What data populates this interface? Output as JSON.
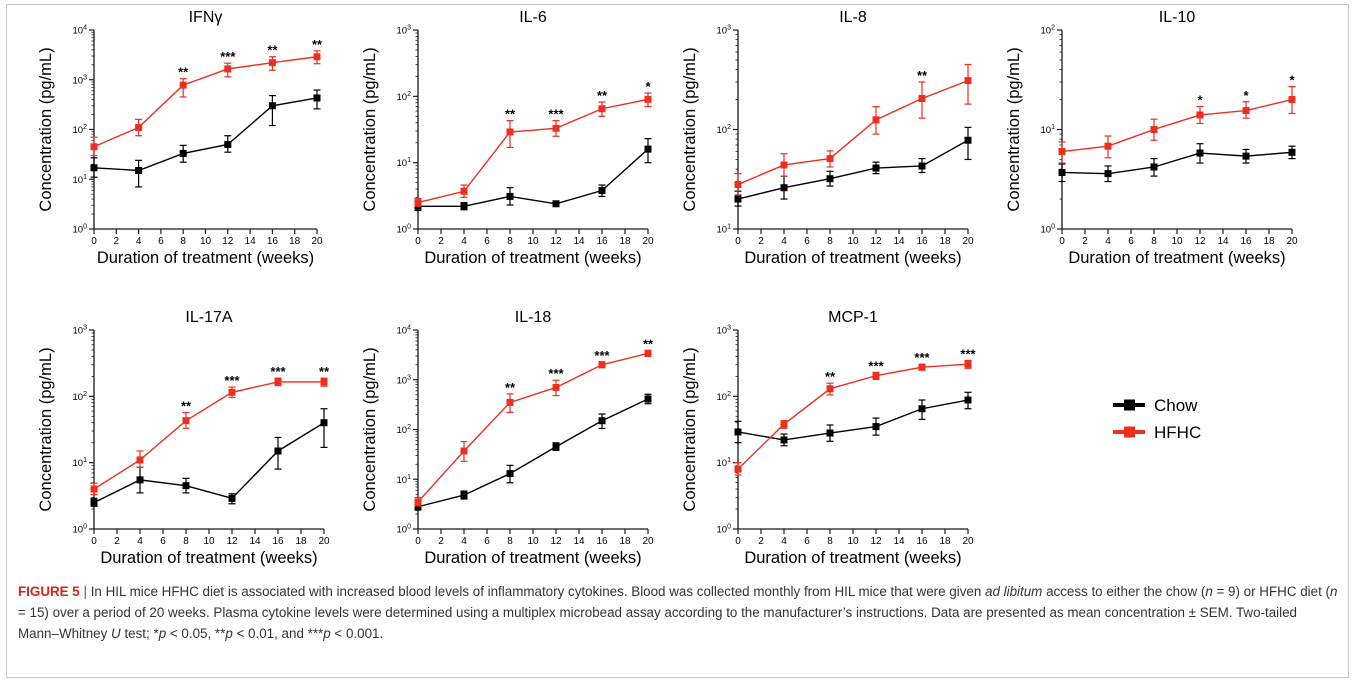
{
  "chart_data": [
    {
      "type": "line",
      "title": "IFNγ",
      "xlabel": "Duration of treatment (weeks)",
      "ylabel": "Concentration (pg/mL)",
      "yscale": "log",
      "ylim": [
        1,
        10000
      ],
      "ydecades": [
        0,
        1,
        2,
        3,
        4
      ],
      "xlim": [
        0,
        20
      ],
      "xticks": [
        0,
        2,
        4,
        6,
        8,
        10,
        12,
        14,
        16,
        18,
        20
      ],
      "x": [
        0,
        4,
        8,
        12,
        16,
        20
      ],
      "series": [
        {
          "name": "Chow",
          "color": "#000000",
          "marker": "square",
          "values": [
            17,
            15,
            33,
            50,
            300,
            430
          ],
          "err_low": [
            11,
            7,
            22,
            35,
            120,
            260
          ],
          "err_high": [
            27,
            24,
            48,
            75,
            480,
            620
          ]
        },
        {
          "name": "HFHC",
          "color": "#ec2f1f",
          "marker": "square",
          "values": [
            45,
            110,
            780,
            1650,
            2200,
            2900
          ],
          "err_low": [
            30,
            75,
            450,
            1150,
            1550,
            2100
          ],
          "err_high": [
            70,
            160,
            1050,
            2150,
            2900,
            3800
          ]
        }
      ],
      "annotations": [
        {
          "x": 8,
          "text": "**"
        },
        {
          "x": 12,
          "text": "***"
        },
        {
          "x": 16,
          "text": "**"
        },
        {
          "x": 20,
          "text": "**"
        }
      ]
    },
    {
      "type": "line",
      "title": "IL-6",
      "xlabel": "Duration of treatment (weeks)",
      "ylabel": "Concentration (pg/mL)",
      "yscale": "log",
      "ylim": [
        1,
        1000
      ],
      "ydecades": [
        0,
        1,
        2,
        3
      ],
      "xlim": [
        0,
        20
      ],
      "xticks": [
        0,
        2,
        4,
        6,
        8,
        10,
        12,
        14,
        16,
        18,
        20
      ],
      "x": [
        0,
        4,
        8,
        12,
        16,
        20
      ],
      "series": [
        {
          "name": "Chow",
          "color": "#000000",
          "marker": "square",
          "values": [
            2.2,
            2.2,
            3.1,
            2.4,
            3.8,
            16
          ],
          "err_low": [
            1.9,
            1.95,
            2.3,
            2.2,
            3.1,
            10
          ],
          "err_high": [
            2.5,
            2.5,
            4.2,
            2.6,
            4.6,
            23
          ]
        },
        {
          "name": "HFHC",
          "color": "#ec2f1f",
          "marker": "square",
          "values": [
            2.5,
            3.7,
            29,
            33,
            65,
            90
          ],
          "err_low": [
            2.2,
            3.0,
            17,
            25,
            50,
            70
          ],
          "err_high": [
            2.9,
            4.6,
            43,
            43,
            82,
            112
          ]
        }
      ],
      "annotations": [
        {
          "x": 8,
          "text": "**"
        },
        {
          "x": 12,
          "text": "***"
        },
        {
          "x": 16,
          "text": "**"
        },
        {
          "x": 20,
          "text": "*"
        }
      ]
    },
    {
      "type": "line",
      "title": "IL-8",
      "xlabel": "Duration of treatment (weeks)",
      "ylabel": "Concentration (pg/mL)",
      "yscale": "log",
      "ylim": [
        10,
        1000
      ],
      "ydecades": [
        1,
        2,
        3
      ],
      "xlim": [
        0,
        20
      ],
      "xticks": [
        0,
        2,
        4,
        6,
        8,
        10,
        12,
        14,
        16,
        18,
        20
      ],
      "x": [
        0,
        4,
        8,
        12,
        16,
        20
      ],
      "series": [
        {
          "name": "Chow",
          "color": "#000000",
          "marker": "square",
          "values": [
            20,
            26,
            32,
            41,
            43,
            78
          ],
          "err_low": [
            17,
            20,
            27,
            36,
            37,
            50
          ],
          "err_high": [
            24,
            34,
            38,
            47,
            51,
            105
          ]
        },
        {
          "name": "HFHC",
          "color": "#ec2f1f",
          "marker": "square",
          "values": [
            28,
            44,
            51,
            125,
            205,
            310
          ],
          "err_low": [
            22,
            34,
            42,
            90,
            130,
            180
          ],
          "err_high": [
            36,
            57,
            61,
            170,
            300,
            450
          ]
        }
      ],
      "annotations": [
        {
          "x": 16,
          "text": "**"
        }
      ]
    },
    {
      "type": "line",
      "title": "IL-10",
      "xlabel": "Duration of treatment (weeks)",
      "ylabel": "Concentration (pg/mL)",
      "yscale": "log",
      "ylim": [
        1,
        100
      ],
      "ydecades": [
        0,
        1,
        2
      ],
      "xlim": [
        0,
        20
      ],
      "xticks": [
        0,
        2,
        4,
        6,
        8,
        10,
        12,
        14,
        16,
        18,
        20
      ],
      "x": [
        0,
        4,
        8,
        12,
        16,
        20
      ],
      "series": [
        {
          "name": "Chow",
          "color": "#000000",
          "marker": "square",
          "values": [
            3.7,
            3.6,
            4.2,
            5.8,
            5.4,
            5.9
          ],
          "err_low": [
            3.0,
            3.0,
            3.4,
            4.6,
            4.6,
            5.1
          ],
          "err_high": [
            4.5,
            4.3,
            5.1,
            7.2,
            6.3,
            6.8
          ]
        },
        {
          "name": "HFHC",
          "color": "#ec2f1f",
          "marker": "square",
          "values": [
            6,
            6.8,
            10,
            14,
            15.5,
            20
          ],
          "err_low": [
            4.6,
            5.2,
            7.8,
            11.5,
            13,
            14.5
          ],
          "err_high": [
            7.5,
            8.6,
            12.7,
            17,
            19,
            27
          ]
        }
      ],
      "annotations": [
        {
          "x": 12,
          "text": "*"
        },
        {
          "x": 16,
          "text": "*"
        },
        {
          "x": 20,
          "text": "*"
        }
      ]
    },
    {
      "type": "line",
      "title": "IL-17A",
      "xlabel": "Duration of treatment (weeks)",
      "ylabel": "Concentration (pg/mL)",
      "yscale": "log",
      "ylim": [
        1,
        1000
      ],
      "ydecades": [
        0,
        1,
        2,
        3
      ],
      "xlim": [
        0,
        20
      ],
      "xticks": [
        0,
        2,
        4,
        6,
        8,
        10,
        12,
        14,
        16,
        18,
        20
      ],
      "x": [
        0,
        4,
        8,
        12,
        16,
        20
      ],
      "series": [
        {
          "name": "Chow",
          "color": "#000000",
          "marker": "square",
          "values": [
            2.5,
            5.5,
            4.5,
            2.9,
            15,
            40
          ],
          "err_low": [
            2.2,
            3.5,
            3.5,
            2.4,
            8,
            17
          ],
          "err_high": [
            2.9,
            8.5,
            5.8,
            3.4,
            24,
            65
          ]
        },
        {
          "name": "HFHC",
          "color": "#ec2f1f",
          "marker": "square",
          "values": [
            4,
            11,
            43,
            115,
            165,
            165
          ],
          "err_low": [
            3.3,
            8.5,
            33,
            96,
            145,
            142
          ],
          "err_high": [
            4.9,
            15,
            57,
            138,
            188,
            188
          ]
        }
      ],
      "annotations": [
        {
          "x": 8,
          "text": "**"
        },
        {
          "x": 12,
          "text": "***"
        },
        {
          "x": 16,
          "text": "***"
        },
        {
          "x": 20,
          "text": "**"
        }
      ]
    },
    {
      "type": "line",
      "title": "IL-18",
      "xlabel": "Duration of treatment (weeks)",
      "ylabel": "Concentration (pg/mL)",
      "yscale": "log",
      "ylim": [
        1,
        10000
      ],
      "ydecades": [
        0,
        1,
        2,
        3,
        4
      ],
      "xlim": [
        0,
        20
      ],
      "xticks": [
        0,
        2,
        4,
        6,
        8,
        10,
        12,
        14,
        16,
        18,
        20
      ],
      "x": [
        0,
        4,
        8,
        12,
        16,
        20
      ],
      "series": [
        {
          "name": "Chow",
          "color": "#000000",
          "marker": "square",
          "values": [
            2.8,
            4.8,
            13,
            45,
            150,
            410
          ],
          "err_low": [
            2.4,
            4.0,
            8.5,
            38,
            105,
            330
          ],
          "err_high": [
            3.3,
            5.8,
            19,
            54,
            205,
            510
          ]
        },
        {
          "name": "HFHC",
          "color": "#ec2f1f",
          "marker": "square",
          "values": [
            3.5,
            37,
            350,
            700,
            2000,
            3400
          ],
          "err_low": [
            2.9,
            23,
            220,
            480,
            1750,
            2950
          ],
          "err_high": [
            4.3,
            57,
            520,
            980,
            2300,
            3900
          ]
        }
      ],
      "annotations": [
        {
          "x": 8,
          "text": "**"
        },
        {
          "x": 12,
          "text": "***"
        },
        {
          "x": 16,
          "text": "***"
        },
        {
          "x": 20,
          "text": "**"
        }
      ]
    },
    {
      "type": "line",
      "title": "MCP-1",
      "xlabel": "Duration of treatment (weeks)",
      "ylabel": "Concentration (pg/mL)",
      "yscale": "log",
      "ylim": [
        1,
        1000
      ],
      "ydecades": [
        0,
        1,
        2,
        3
      ],
      "xlim": [
        0,
        20
      ],
      "xticks": [
        0,
        2,
        4,
        6,
        8,
        10,
        12,
        14,
        16,
        18,
        20
      ],
      "x": [
        0,
        4,
        8,
        12,
        16,
        20
      ],
      "series": [
        {
          "name": "Chow",
          "color": "#000000",
          "marker": "square",
          "values": [
            29,
            22,
            28,
            35,
            65,
            88
          ],
          "err_low": [
            20,
            18,
            21,
            26,
            45,
            65
          ],
          "err_high": [
            42,
            27,
            37,
            47,
            88,
            115
          ]
        },
        {
          "name": "HFHC",
          "color": "#ec2f1f",
          "marker": "square",
          "values": [
            8,
            38,
            130,
            205,
            275,
            305
          ],
          "err_low": [
            6.5,
            33,
            105,
            180,
            248,
            265
          ],
          "err_high": [
            10,
            43,
            158,
            230,
            305,
            348
          ]
        }
      ],
      "annotations": [
        {
          "x": 8,
          "text": "**"
        },
        {
          "x": 12,
          "text": "***"
        },
        {
          "x": 16,
          "text": "***"
        },
        {
          "x": 20,
          "text": "***"
        }
      ]
    }
  ],
  "legend": {
    "placement": "right",
    "items": [
      {
        "label": "Chow",
        "color": "#000000"
      },
      {
        "label": "HFHC",
        "color": "#ec2f1f"
      }
    ]
  },
  "caption": {
    "label": "FIGURE 5",
    "separator": "|",
    "text_1": " In HIL mice HFHC diet is associated with increased blood levels of inflammatory cytokines. Blood was collected monthly from HIL mice that were given ",
    "italic_1": "ad libitum",
    "text_2": " access to either the chow (",
    "n_symbol_1": "n",
    "text_3": " = 9) or HFHC diet (",
    "n_symbol_2": "n",
    "text_4": " = 15) over a period of 20 weeks. Plasma cytokine levels were determined using a multiplex microbead assay according to the manufacturer’s instructions. Data are presented as mean concentration ± SEM. Two-tailed Mann–Whitney ",
    "u_symbol": "U",
    "text_5": " test; *",
    "p1": "p",
    "text_6": " < 0.05, **",
    "p2": "p",
    "text_7": " < 0.01, and ***",
    "p3": "p",
    "text_8": " < 0.001."
  }
}
